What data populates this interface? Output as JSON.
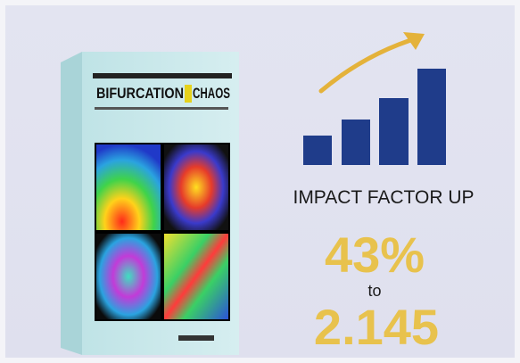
{
  "book": {
    "title_left": "BIFURCATION",
    "title_right": "CHAOS"
  },
  "headline": "IMPACT FACTOR UP",
  "increase": "43%",
  "connector": "to",
  "impact_factor": "2.145"
}
